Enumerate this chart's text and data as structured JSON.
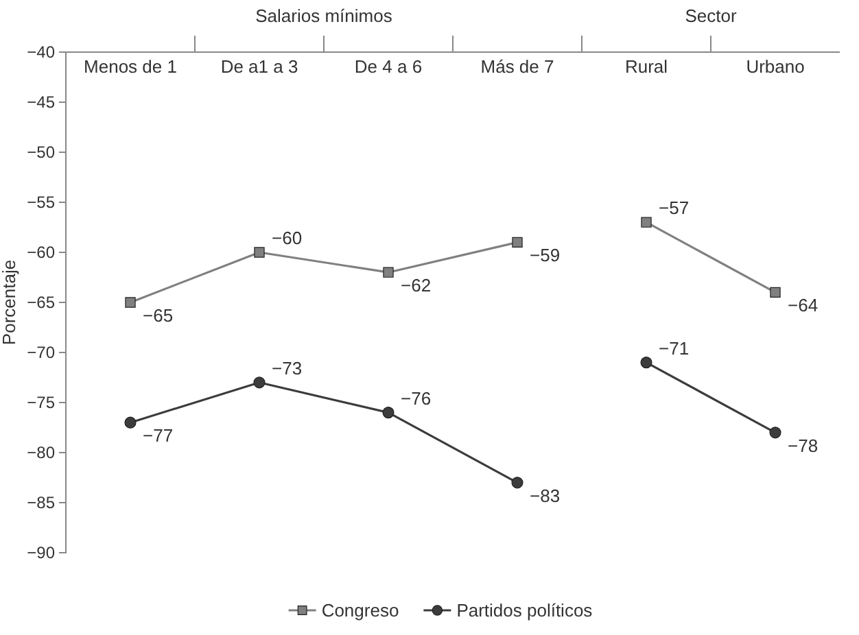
{
  "chart_data": {
    "type": "line",
    "ylabel": "Porcentaje",
    "categories": [
      "Menos de 1",
      "De a1 a 3",
      "De 4 a 6",
      "Más de 7",
      "Rural",
      "Urbano"
    ],
    "series": [
      {
        "name": "Congreso",
        "color": "#808080",
        "marker": "square",
        "values": [
          -65,
          -60,
          -62,
          -59,
          null,
          null
        ]
      },
      {
        "name": "Partidos políticos",
        "color": "#3c3c3c",
        "marker": "circle",
        "values": [
          -77,
          -73,
          -76,
          -83,
          null,
          null
        ]
      },
      {
        "color": "#808080",
        "marker": "square",
        "values": [
          null,
          null,
          null,
          null,
          -57,
          -64
        ]
      },
      {
        "color": "#3c3c3c",
        "marker": "circle",
        "values": [
          null,
          null,
          null,
          null,
          -71,
          -78
        ]
      }
    ],
    "annotations": [
      "Salarios mínimos",
      "Sector"
    ],
    "ylim": [
      -90,
      -40
    ],
    "yticks": [
      -40,
      -45,
      -50,
      -55,
      -60,
      -65,
      -70,
      -75,
      -80,
      -85,
      -90
    ],
    "data_labels": true,
    "legend": "bottom"
  }
}
